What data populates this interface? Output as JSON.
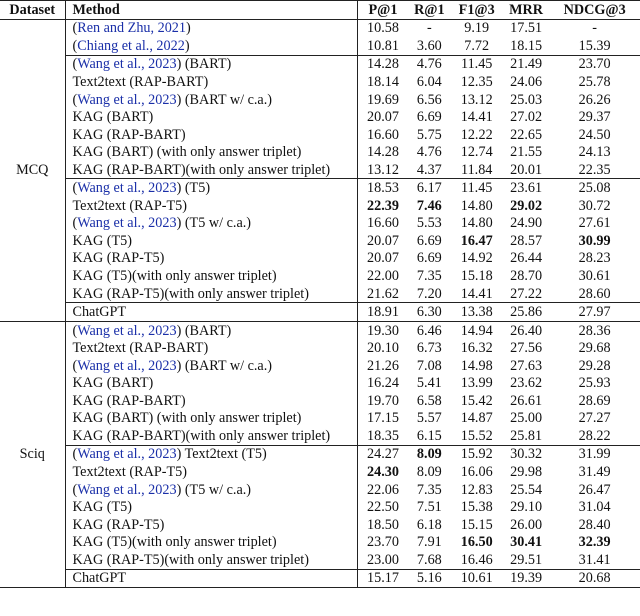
{
  "header": [
    "Dataset",
    "Method",
    "P@1",
    "R@1",
    "F1@3",
    "MRR",
    "NDCG@3"
  ],
  "colors": {
    "citation": "#1a2fa8"
  },
  "groups": [
    {
      "dataset": "MCQ",
      "blocks": [
        [
          {
            "pre": "(",
            "cite": "Ren and Zhu, 2021",
            "post": ")",
            "values": [
              "10.58",
              "-",
              "9.19",
              "17.51",
              "-"
            ],
            "bold": []
          },
          {
            "pre": "(",
            "cite": "Chiang et al., 2022",
            "post": ")",
            "values": [
              "10.81",
              "3.60",
              "7.72",
              "18.15",
              "15.39"
            ],
            "bold": []
          }
        ],
        [
          {
            "pre": "(",
            "cite": "Wang et al., 2023",
            "post": ") (BART)",
            "values": [
              "14.28",
              "4.76",
              "11.45",
              "21.49",
              "23.70"
            ],
            "bold": []
          },
          {
            "pre": "Text2text (RAP-BART)",
            "values": [
              "18.14",
              "6.04",
              "12.35",
              "24.06",
              "25.78"
            ],
            "bold": []
          },
          {
            "pre": "(",
            "cite": "Wang et al., 2023",
            "post": ") (BART w/ c.a.)",
            "values": [
              "19.69",
              "6.56",
              "13.12",
              "25.03",
              "26.26"
            ],
            "bold": []
          },
          {
            "pre": "KAG (BART)",
            "values": [
              "20.07",
              "6.69",
              "14.41",
              "27.02",
              "29.37"
            ],
            "bold": []
          },
          {
            "pre": "KAG (RAP-BART)",
            "values": [
              "16.60",
              "5.75",
              "12.22",
              "22.65",
              "24.50"
            ],
            "bold": []
          },
          {
            "pre": "KAG (BART) (with only answer triplet)",
            "values": [
              "14.28",
              "4.76",
              "12.74",
              "21.55",
              "24.13"
            ],
            "bold": []
          },
          {
            "pre": "KAG (RAP-BART)(with only answer triplet)",
            "values": [
              "13.12",
              "4.37",
              "11.84",
              "20.01",
              "22.35"
            ],
            "bold": []
          }
        ],
        [
          {
            "pre": "(",
            "cite": "Wang et al., 2023",
            "post": ") (T5)",
            "values": [
              "18.53",
              "6.17",
              "11.45",
              "23.61",
              "25.08"
            ],
            "bold": []
          },
          {
            "pre": "Text2text (RAP-T5)",
            "values": [
              "22.39",
              "7.46",
              "14.80",
              "29.02",
              "30.72"
            ],
            "bold": [
              0,
              1,
              3
            ]
          },
          {
            "pre": "(",
            "cite": "Wang et al., 2023",
            "post": ") (T5 w/ c.a.)",
            "values": [
              "16.60",
              "5.53",
              "14.80",
              "24.90",
              "27.61"
            ],
            "bold": []
          },
          {
            "pre": "KAG (T5)",
            "values": [
              "20.07",
              "6.69",
              "16.47",
              "28.57",
              "30.99"
            ],
            "bold": [
              2,
              4
            ]
          },
          {
            "pre": "KAG (RAP-T5)",
            "values": [
              "20.07",
              "6.69",
              "14.92",
              "26.44",
              "28.23"
            ],
            "bold": []
          },
          {
            "pre": "KAG (T5)(with only answer triplet)",
            "values": [
              "22.00",
              "7.35",
              "15.18",
              "28.70",
              "30.61"
            ],
            "bold": []
          },
          {
            "pre": "KAG (RAP-T5)(with only answer triplet)",
            "values": [
              "21.62",
              "7.20",
              "14.41",
              "27.22",
              "28.60"
            ],
            "bold": []
          }
        ],
        [
          {
            "pre": "ChatGPT",
            "values": [
              "18.91",
              "6.30",
              "13.38",
              "25.86",
              "27.97"
            ],
            "bold": []
          }
        ]
      ]
    },
    {
      "dataset": "Sciq",
      "blocks": [
        [
          {
            "pre": "(",
            "cite": "Wang et al., 2023",
            "post": ") (BART)",
            "values": [
              "19.30",
              "6.46",
              "14.94",
              "26.40",
              "28.36"
            ],
            "bold": []
          },
          {
            "pre": "Text2text (RAP-BART)",
            "values": [
              "20.10",
              "6.73",
              "16.32",
              "27.56",
              "29.68"
            ],
            "bold": []
          },
          {
            "pre": "(",
            "cite": "Wang et al., 2023",
            "post": ") (BART w/ c.a.)",
            "values": [
              "21.26",
              "7.08",
              "14.98",
              "27.63",
              "29.28"
            ],
            "bold": []
          },
          {
            "pre": "KAG (BART)",
            "values": [
              "16.24",
              "5.41",
              "13.99",
              "23.62",
              "25.93"
            ],
            "bold": []
          },
          {
            "pre": "KAG (RAP-BART)",
            "values": [
              "19.70",
              "6.58",
              "15.42",
              "26.61",
              "28.69"
            ],
            "bold": []
          },
          {
            "pre": "KAG (BART) (with only answer triplet)",
            "values": [
              "17.15",
              "5.57",
              "14.87",
              "25.00",
              "27.27"
            ],
            "bold": []
          },
          {
            "pre": "KAG (RAP-BART)(with only answer triplet)",
            "values": [
              "18.35",
              "6.15",
              "15.52",
              "25.81",
              "28.22"
            ],
            "bold": []
          }
        ],
        [
          {
            "pre": "(",
            "cite": "Wang et al., 2023",
            "post": ") Text2text (T5)",
            "values": [
              "24.27",
              "8.09",
              "15.92",
              "30.32",
              "31.99"
            ],
            "bold": [
              1
            ]
          },
          {
            "pre": "Text2text (RAP-T5)",
            "values": [
              "24.30",
              "8.09",
              "16.06",
              "29.98",
              "31.49"
            ],
            "bold": [
              0
            ]
          },
          {
            "pre": "(",
            "cite": "Wang et al., 2023",
            "post": ") (T5 w/ c.a.)",
            "values": [
              "22.06",
              "7.35",
              "12.83",
              "25.54",
              "26.47"
            ],
            "bold": []
          },
          {
            "pre": "KAG (T5)",
            "values": [
              "22.50",
              "7.51",
              "15.38",
              "29.10",
              "31.04"
            ],
            "bold": []
          },
          {
            "pre": "KAG (RAP-T5)",
            "values": [
              "18.50",
              "6.18",
              "15.15",
              "26.00",
              "28.40"
            ],
            "bold": []
          },
          {
            "pre": "KAG (T5)(with only answer triplet)",
            "values": [
              "23.70",
              "7.91",
              "16.50",
              "30.41",
              "32.39"
            ],
            "bold": [
              2,
              3,
              4
            ]
          },
          {
            "pre": "KAG (RAP-T5)(with only answer triplet)",
            "values": [
              "23.00",
              "7.68",
              "16.46",
              "29.51",
              "31.41"
            ],
            "bold": []
          }
        ],
        [
          {
            "pre": "ChatGPT",
            "values": [
              "15.17",
              "5.16",
              "10.61",
              "19.39",
              "20.68"
            ],
            "bold": []
          }
        ]
      ]
    }
  ]
}
